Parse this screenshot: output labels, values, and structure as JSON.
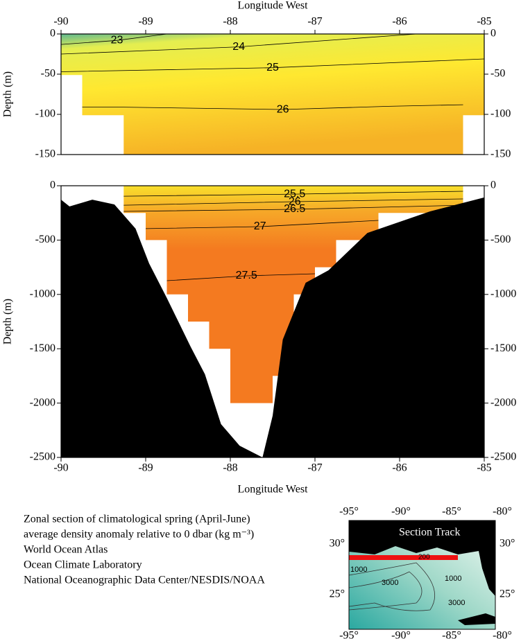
{
  "chart_data": [
    {
      "type": "contour",
      "x_label": "Longitude West",
      "y_label": "Depth (m)",
      "xlim": [
        -90,
        -85
      ],
      "ylim": [
        -150,
        0
      ],
      "xticks": [
        -90,
        -89,
        -88,
        -87,
        -86,
        -85
      ],
      "yticks": [
        0,
        -50,
        -100,
        -150
      ],
      "coverage": {
        "x": [
          -90,
          -85,
          -85,
          -85.25,
          -85.25,
          -89.26,
          -89.26,
          -89.75,
          -89.75,
          -90
        ],
        "y": [
          0,
          0,
          -101,
          -101,
          -150,
          -150,
          -101,
          -101,
          -51,
          -51
        ]
      },
      "contours": [
        {
          "level": 23,
          "x": [
            -90,
            -89.34,
            -88.75
          ],
          "y": [
            -13,
            -8,
            0
          ]
        },
        {
          "level": 24,
          "x": [
            -90,
            -87.9,
            -85.8
          ],
          "y": [
            -25,
            -16,
            0
          ]
        },
        {
          "level": 25,
          "x": [
            -90,
            -87.5,
            -85
          ],
          "y": [
            -47,
            -42,
            -31
          ]
        },
        {
          "level": 26,
          "x": [
            -89.75,
            -89.26,
            -87.38,
            -86.13,
            -85.25
          ],
          "y": [
            -91,
            -91,
            -94,
            -90,
            -88
          ]
        }
      ]
    },
    {
      "type": "contour",
      "x_label": "Longitude West",
      "y_label": "Depth (m)",
      "xlim": [
        -90,
        -85
      ],
      "ylim": [
        -2500,
        0
      ],
      "xticks": [
        -90,
        -89,
        -88,
        -87,
        -86,
        -85
      ],
      "yticks": [
        0,
        -500,
        -1000,
        -1500,
        -2000,
        -2500
      ],
      "coverage": {
        "x": [
          -89.26,
          -85.25,
          -85.25,
          -86.25,
          -86.25,
          -86.75,
          -86.75,
          -87,
          -87,
          -87.25,
          -87.25,
          -87.5,
          -87.5,
          -88,
          -88,
          -88.25,
          -88.25,
          -88.5,
          -88.5,
          -88.75,
          -88.75,
          -89,
          -89,
          -89.26
        ],
        "y": [
          0,
          0,
          -250,
          -250,
          -500,
          -500,
          -750,
          -750,
          -1000,
          -1000,
          -1750,
          -1750,
          -2000,
          -2000,
          -1500,
          -1500,
          -1250,
          -1250,
          -1000,
          -1000,
          -500,
          -500,
          -250,
          -250
        ]
      },
      "bottom": {
        "x": [
          -90,
          -89.9,
          -89.63,
          -89.37,
          -89.12,
          -88.96,
          -88.75,
          -88.47,
          -88.3,
          -88.11,
          -87.89,
          -87.62,
          -87.5,
          -87.38,
          -87.11,
          -86.84,
          -86.38,
          -85.64,
          -85,
          -85,
          -90
        ],
        "y": [
          -128,
          -191,
          -128,
          -172,
          -395,
          -714,
          -1033,
          -1480,
          -1735,
          -2194,
          -2392,
          -2500,
          -2117,
          -1416,
          -893,
          -778,
          -434,
          -236,
          -108,
          -2500,
          -2500
        ]
      },
      "contours": [
        {
          "level": 25.5,
          "x": [
            -89.26,
            -87.24,
            -85.25
          ],
          "y": [
            -96,
            -77,
            -51
          ]
        },
        {
          "level": 26,
          "x": [
            -89.26,
            -87.24,
            -85.25
          ],
          "y": [
            -179,
            -147,
            -121
          ]
        },
        {
          "level": 26.5,
          "x": [
            -89.26,
            -87.24,
            -85.25
          ],
          "y": [
            -236,
            -217,
            -179
          ]
        },
        {
          "level": 27,
          "x": [
            -89,
            -87.65,
            -86.25
          ],
          "y": [
            -395,
            -376,
            -319
          ]
        },
        {
          "level": 27.5,
          "x": [
            -88.75,
            -87.81,
            -87
          ],
          "y": [
            -874,
            -829,
            -810
          ]
        }
      ]
    }
  ],
  "caption": [
    "Zonal section of climatological spring (April-June)",
    "average density anomaly relative to 0 dbar (kg m⁻³)",
    "World Ocean Atlas",
    "Ocean Climate Laboratory",
    "National Oceanographic Data Center/NESDIS/NOAA"
  ],
  "inset": {
    "title": "Section Track",
    "lon_labels": [
      "-95°",
      "-90°",
      "-85°",
      "-80°"
    ],
    "lat_labels": [
      "30°",
      "25°"
    ],
    "depth_labels": [
      "200",
      "1000",
      "3000",
      "1000",
      "3000"
    ]
  }
}
